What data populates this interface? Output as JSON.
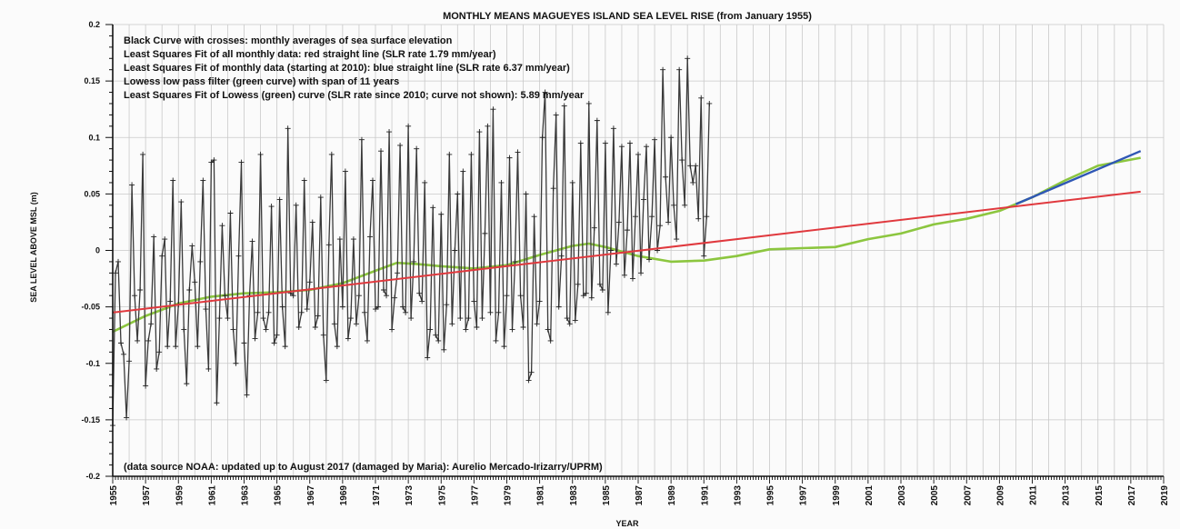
{
  "chart_data": {
    "type": "line",
    "title": "MONTHLY MEANS MAGUEYES ISLAND SEA LEVEL RISE (from January 1955)",
    "xlabel": "YEAR",
    "ylabel": "SEA LEVEL ABOVE MSL (m)",
    "xlim": [
      1955,
      2019
    ],
    "ylim": [
      -0.2,
      0.2
    ],
    "x_ticks": [
      "1955",
      "1957",
      "1959",
      "1961",
      "1963",
      "1965",
      "1967",
      "1969",
      "1971",
      "1973",
      "1975",
      "1977",
      "1979",
      "1981",
      "1983",
      "1985",
      "1987",
      "1989",
      "1991",
      "1993",
      "1995",
      "1997",
      "1999",
      "2001",
      "2003",
      "2005",
      "2007",
      "2009",
      "2011",
      "2013",
      "2015",
      "2017",
      "2019"
    ],
    "y_ticks": [
      "0.2",
      "0.15",
      "0.1",
      "0.05",
      "0",
      "-0.05",
      "-0.1",
      "-0.15",
      "-0.2"
    ],
    "grid": true,
    "legend_lines": [
      "Black Curve with crosses: monthly averages of sea surface elevation",
      "Least Squares Fit of all monthly data: red straight line (SLR rate 1.79 mm/year)",
      "Least Squares Fit of monthly data (starting at 2010): blue straight line (SLR rate 6.37 mm/year)",
      "Lowess low pass filter (green curve) with span of 11 years",
      "Least Squares Fit of Lowess (green) curve (SLR rate since 2010; curve not shown): 5.89 mm/year"
    ],
    "annotation": "(data source NOAA: updated up to August 2017 (damaged by Maria): Aurelio Mercado-Irizarry/UPRM)",
    "colors": {
      "monthly": "#3a3a3a",
      "fit_all": "#e0393e",
      "fit_2010": "#2f57b5",
      "lowess": "#8cc63f",
      "grid": "#c9c9c9"
    },
    "series": [
      {
        "name": "Least Squares Fit of all monthly data",
        "type": "line",
        "color": "#e0393e",
        "x": [
          1955,
          2017.6
        ],
        "y": [
          -0.055,
          0.052
        ]
      },
      {
        "name": "Least Squares Fit of monthly data (starting at 2010)",
        "type": "line",
        "color": "#2f57b5",
        "x": [
          2010,
          2017.6
        ],
        "y": [
          0.041,
          0.088
        ]
      },
      {
        "name": "Lowess low pass filter",
        "type": "line",
        "color": "#8cc63f",
        "x": [
          1955,
          1957,
          1959,
          1961,
          1963,
          1965,
          1967,
          1969,
          1971,
          1972.3,
          1973.5,
          1975,
          1977,
          1979,
          1981,
          1983,
          1984,
          1985,
          1987,
          1989,
          1991,
          1993,
          1995,
          1997,
          1999,
          2001,
          2003,
          2005,
          2007,
          2009,
          2011,
          2013,
          2015,
          2017.6
        ],
        "y": [
          -0.072,
          -0.058,
          -0.047,
          -0.041,
          -0.038,
          -0.037,
          -0.035,
          -0.029,
          -0.018,
          -0.011,
          -0.012,
          -0.014,
          -0.016,
          -0.013,
          -0.004,
          0.004,
          0.006,
          0.003,
          -0.005,
          -0.01,
          -0.009,
          -0.005,
          0.001,
          0.002,
          0.003,
          0.01,
          0.015,
          0.023,
          0.028,
          0.035,
          0.047,
          0.062,
          0.075,
          0.082
        ]
      },
      {
        "name": "Black Curve with crosses",
        "type": "line",
        "color": "#3a3a3a",
        "start_year": 1955.0,
        "step_years": 0.1666667,
        "y": [
          -0.155,
          -0.02,
          -0.01,
          -0.082,
          -0.092,
          -0.148,
          -0.098,
          0.058,
          -0.04,
          -0.08,
          -0.035,
          0.085,
          -0.12,
          -0.08,
          -0.065,
          0.012,
          -0.105,
          -0.09,
          -0.005,
          0.01,
          -0.085,
          -0.045,
          0.062,
          -0.085,
          -0.048,
          0.043,
          -0.07,
          -0.118,
          -0.035,
          0.004,
          -0.028,
          -0.085,
          -0.01,
          0.062,
          -0.052,
          -0.105,
          0.078,
          0.08,
          -0.135,
          -0.06,
          0.022,
          -0.04,
          -0.06,
          0.033,
          -0.07,
          -0.1,
          -0.005,
          0.078,
          -0.082,
          -0.128,
          -0.04,
          0.008,
          -0.078,
          -0.055,
          0.085,
          -0.06,
          -0.07,
          -0.055,
          0.039,
          -0.082,
          -0.075,
          0.045,
          -0.05,
          -0.085,
          0.108,
          -0.038,
          -0.04,
          0.04,
          -0.068,
          -0.055,
          0.062,
          -0.052,
          -0.028,
          0.025,
          -0.068,
          -0.058,
          0.047,
          -0.075,
          -0.115,
          0.005,
          0.085,
          -0.065,
          -0.085,
          0.01,
          -0.05,
          0.07,
          -0.078,
          -0.06,
          0.01,
          -0.065,
          -0.04,
          0.098,
          -0.055,
          -0.08,
          0.012,
          0.062,
          -0.052,
          -0.05,
          0.088,
          -0.035,
          -0.04,
          0.105,
          -0.07,
          -0.042,
          -0.02,
          0.093,
          -0.05,
          -0.055,
          0.11,
          -0.06,
          -0.01,
          0.09,
          -0.038,
          -0.045,
          0.06,
          -0.095,
          -0.07,
          0.038,
          -0.075,
          -0.08,
          0.032,
          -0.088,
          -0.048,
          0.085,
          -0.065,
          0.0,
          0.05,
          -0.06,
          0.07,
          -0.07,
          -0.06,
          0.085,
          -0.045,
          -0.068,
          0.105,
          -0.06,
          0.015,
          0.11,
          -0.055,
          0.125,
          -0.08,
          -0.055,
          0.06,
          -0.085,
          -0.04,
          0.082,
          -0.07,
          -0.01,
          0.087,
          -0.04,
          -0.068,
          0.05,
          -0.115,
          -0.108,
          0.03,
          -0.065,
          -0.045,
          0.1,
          0.14,
          -0.07,
          -0.08,
          0.055,
          0.12,
          -0.05,
          -0.005,
          0.128,
          -0.06,
          -0.065,
          0.06,
          -0.062,
          -0.03,
          0.095,
          -0.04,
          -0.038,
          0.13,
          -0.042,
          0.02,
          0.115,
          -0.03,
          -0.035,
          0.095,
          -0.055,
          0.0,
          0.108,
          -0.012,
          0.025,
          0.092,
          -0.022,
          0.018,
          0.095,
          -0.025,
          0.03,
          0.085,
          -0.02,
          0.045,
          0.092,
          -0.008,
          0.03,
          0.098,
          0.0,
          0.022,
          0.16,
          0.065,
          0.025,
          0.1,
          0.04,
          0.01,
          0.16,
          0.08,
          0.04,
          0.17,
          0.075,
          0.06,
          0.075,
          0.028,
          0.135,
          -0.005,
          0.03,
          0.13
        ]
      }
    ]
  }
}
